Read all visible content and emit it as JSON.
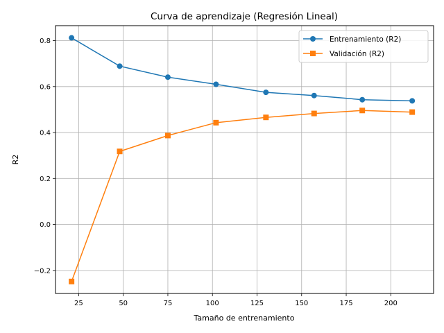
{
  "chart_data": {
    "type": "line",
    "title": "Curva de aprendizaje (Regresión Lineal)",
    "xlabel": "Tamaño de entrenamiento",
    "ylabel": "R2",
    "xlim": [
      12,
      224
    ],
    "ylim": [
      -0.3,
      0.865
    ],
    "xticks": [
      25,
      50,
      75,
      100,
      125,
      150,
      175,
      200
    ],
    "yticks": [
      -0.2,
      0.0,
      0.2,
      0.4,
      0.6,
      0.8
    ],
    "grid": true,
    "legend_position": "top-right",
    "x": [
      21,
      48,
      75,
      102,
      130,
      157,
      184,
      212
    ],
    "series": [
      {
        "name": "Entrenamiento (R2)",
        "values": [
          0.812,
          0.689,
          0.641,
          0.61,
          0.575,
          0.561,
          0.543,
          0.538
        ],
        "color": "#1f77b4",
        "marker": "circle"
      },
      {
        "name": "Validación (R2)",
        "values": [
          -0.248,
          0.318,
          0.387,
          0.443,
          0.466,
          0.483,
          0.496,
          0.489
        ],
        "color": "#ff7f0e",
        "marker": "square"
      }
    ]
  }
}
